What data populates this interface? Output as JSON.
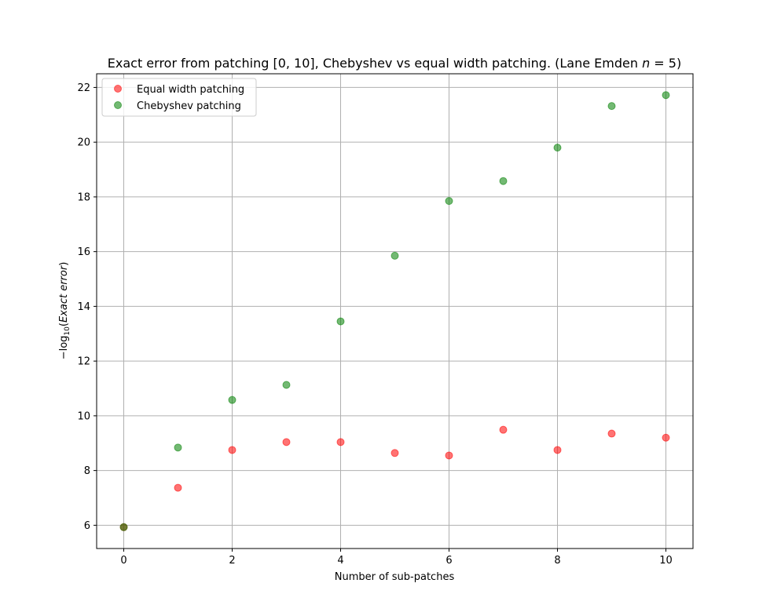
{
  "chart_data": {
    "type": "scatter",
    "title": "Exact error from patching [0, 10], Chebyshev vs equal width patching. (Lane Emden n = 5)",
    "title_prefix": "Exact error from patching ",
    "title_interval": "[0, 10]",
    "title_middle": ", Chebyshev vs equal width patching. (Lane Emden ",
    "title_var": "n",
    "title_suffix": " = 5)",
    "xlabel": "Number of sub-patches",
    "ylabel": "−log10(Exact error)",
    "ylabel_prefix": "−log",
    "ylabel_sub": "10",
    "ylabel_open": "(",
    "ylabel_italic": "Exact error",
    "ylabel_close": ")",
    "xlim": [
      -0.5,
      10.5
    ],
    "ylim": [
      5.15,
      22.5
    ],
    "xticks": [
      0,
      2,
      4,
      6,
      8,
      10
    ],
    "yticks": [
      6,
      8,
      10,
      12,
      14,
      16,
      18,
      20,
      22
    ],
    "grid": true,
    "legend_position": "top-left",
    "series": [
      {
        "name": "Equal width patching",
        "color": "#ff0000",
        "alpha": 0.55,
        "x": [
          0,
          1,
          2,
          3,
          4,
          5,
          6,
          7,
          8,
          9,
          10
        ],
        "y": [
          5.93,
          7.37,
          8.75,
          9.04,
          9.04,
          8.64,
          8.55,
          9.49,
          8.75,
          9.35,
          9.2
        ]
      },
      {
        "name": "Chebyshev patching",
        "color": "#008000",
        "alpha": 0.55,
        "x": [
          0,
          1,
          2,
          3,
          4,
          5,
          6,
          7,
          8,
          9,
          10
        ],
        "y": [
          5.93,
          8.84,
          10.58,
          11.13,
          13.45,
          15.85,
          17.85,
          18.58,
          19.8,
          21.32,
          21.72
        ]
      }
    ]
  }
}
